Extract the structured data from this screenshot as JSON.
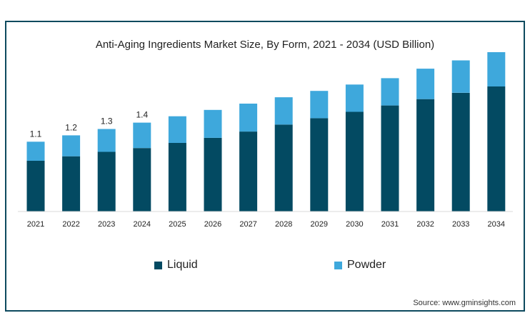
{
  "chart_data": {
    "type": "bar",
    "stacked": true,
    "title": "Anti-Aging Ingredients Market Size, By Form, 2021 - 2034 (USD Billion)",
    "categories": [
      "2021",
      "2022",
      "2023",
      "2024",
      "2025",
      "2026",
      "2027",
      "2028",
      "2029",
      "2030",
      "2031",
      "2032",
      "2033",
      "2034"
    ],
    "series": [
      {
        "name": "Liquid",
        "color": "#034a62",
        "values": [
          0.8,
          0.87,
          0.94,
          1.0,
          1.08,
          1.16,
          1.26,
          1.37,
          1.47,
          1.57,
          1.67,
          1.77,
          1.87,
          1.97
        ]
      },
      {
        "name": "Powder",
        "color": "#3ea8dc",
        "values": [
          0.3,
          0.33,
          0.36,
          0.4,
          0.42,
          0.44,
          0.44,
          0.43,
          0.43,
          0.43,
          0.43,
          0.48,
          0.51,
          0.54
        ]
      }
    ],
    "data_labels": [
      "1.1",
      "1.2",
      "1.3",
      "1.4"
    ],
    "ylim": [
      0,
      2.6
    ],
    "grid": false,
    "legend_position": "bottom"
  },
  "source": "Source: www.gminsights.com"
}
